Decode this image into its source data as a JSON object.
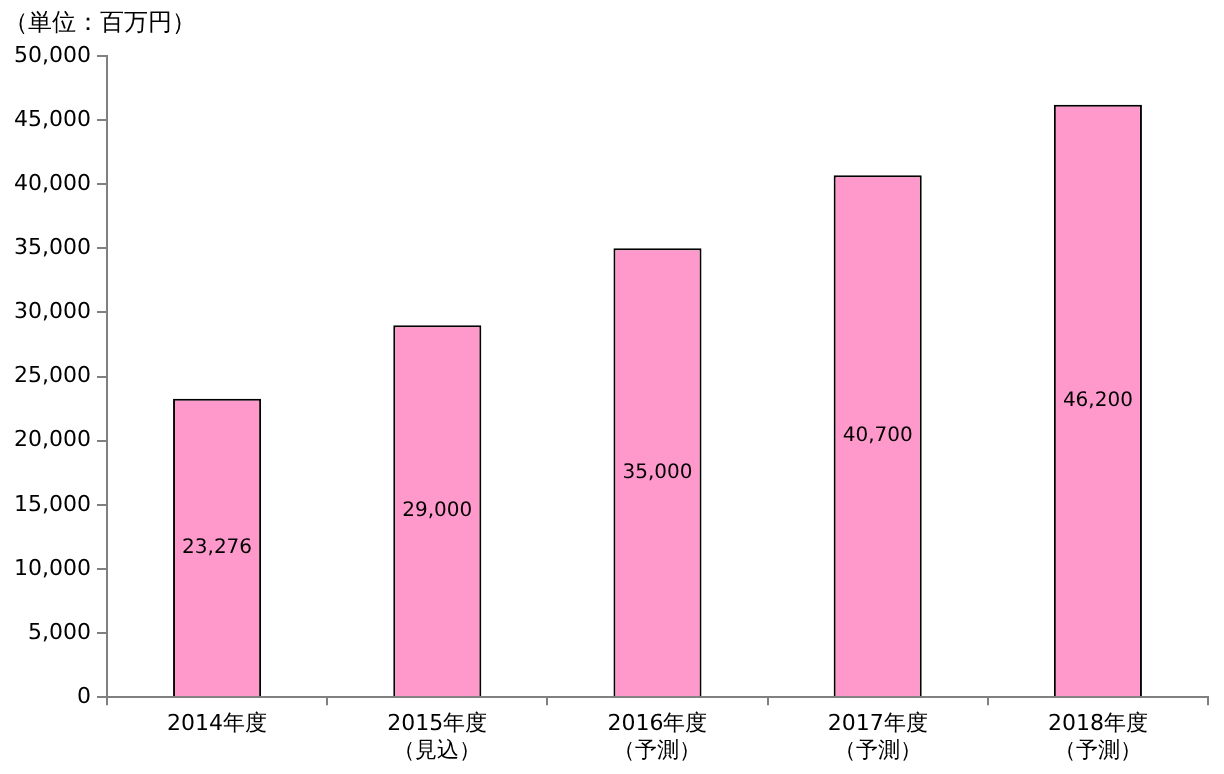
{
  "chart_data": {
    "type": "bar",
    "ylabel": "（単位：百万円）",
    "categories": [
      "2014年度",
      "2015年度（見込）",
      "2016年度（予測）",
      "2017年度（予測）",
      "2018年度（予測）"
    ],
    "values": [
      23276,
      29000,
      35000,
      40700,
      46200
    ],
    "value_labels": [
      "23,276",
      "29,000",
      "35,000",
      "40,700",
      "46,200"
    ],
    "color": "#ff99cc",
    "ylim": [
      0,
      50000
    ],
    "yticks": [
      {
        "value": 0,
        "label": "0"
      },
      {
        "value": 5000,
        "label": "5,000"
      },
      {
        "value": 10000,
        "label": "10,000"
      },
      {
        "value": 15000,
        "label": "15,000"
      },
      {
        "value": 20000,
        "label": "20,000"
      },
      {
        "value": 25000,
        "label": "25,000"
      },
      {
        "value": 30000,
        "label": "30,000"
      },
      {
        "value": 35000,
        "label": "35,000"
      },
      {
        "value": 40000,
        "label": "40,000"
      },
      {
        "value": 45000,
        "label": "45,000"
      },
      {
        "value": 50000,
        "label": "50,000"
      }
    ],
    "grid": false,
    "legend": false
  }
}
